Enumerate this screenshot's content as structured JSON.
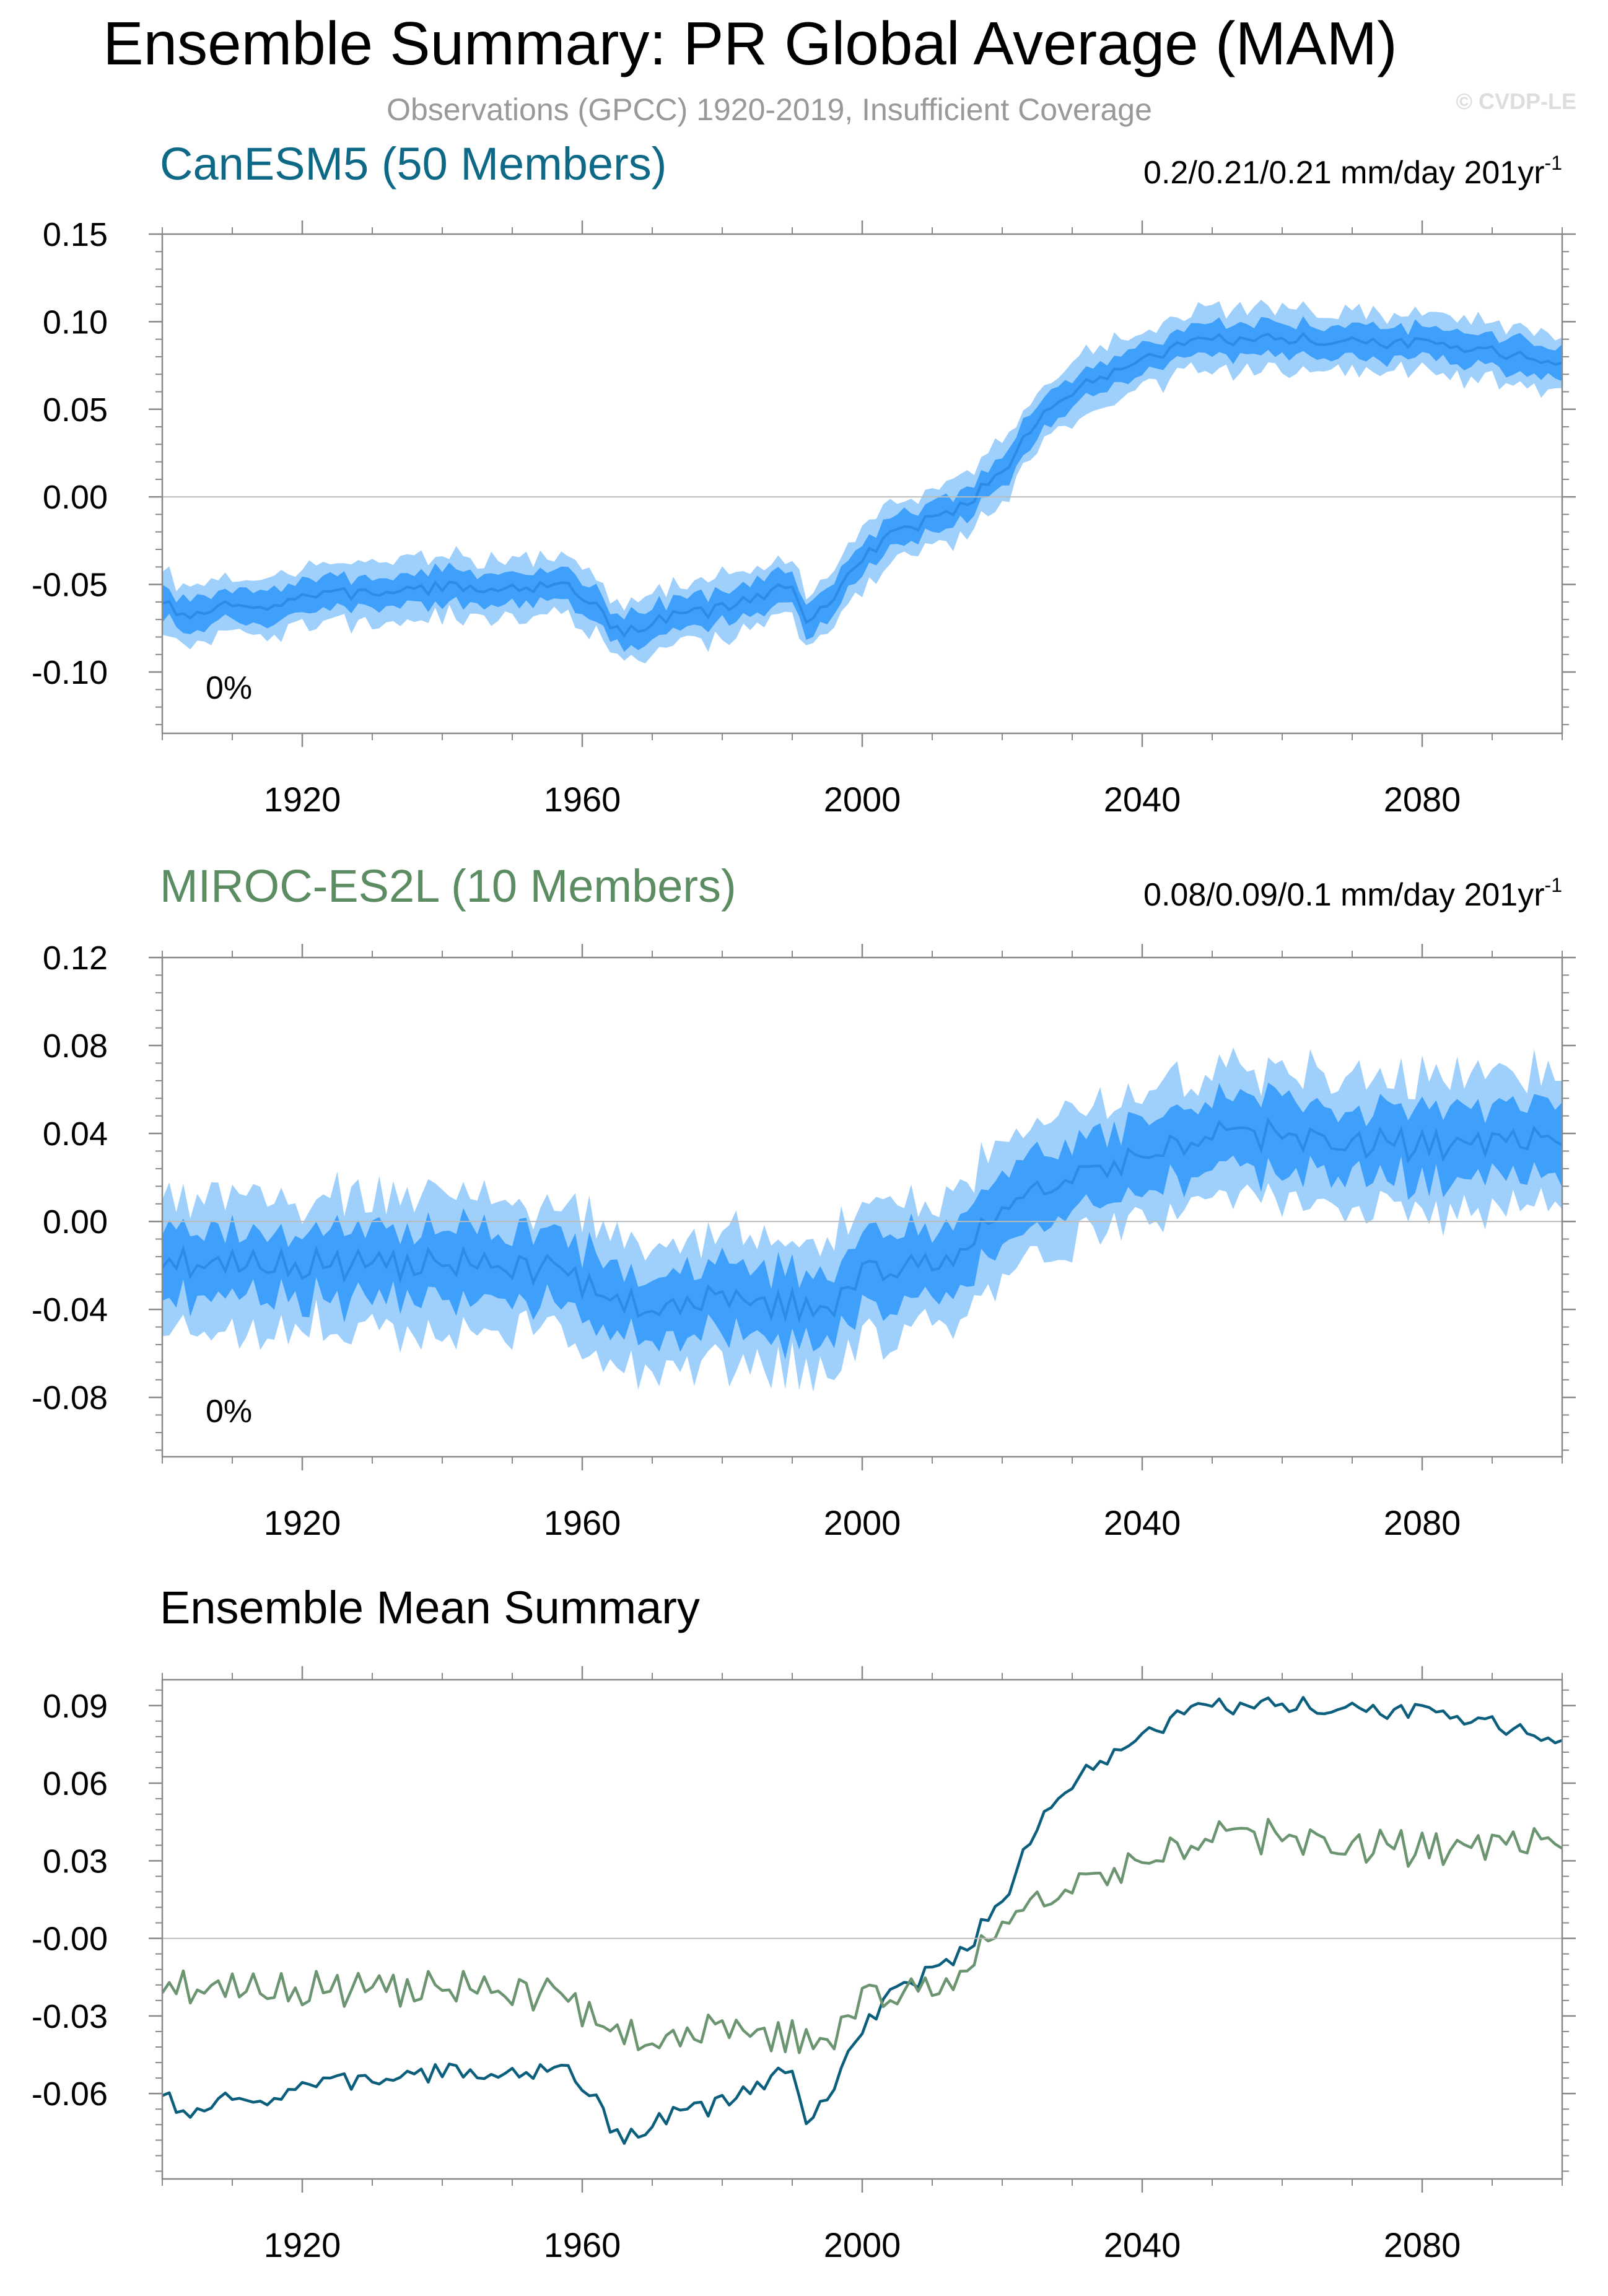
{
  "header": {
    "title": "Ensemble Summary: PR Global Average (MAM)",
    "subtitle": "Observations (GPCC) 1920-2019, Insufficient Coverage",
    "watermark": "© CVDP-LE"
  },
  "colors": {
    "canesm5_title": "#0e6987",
    "miroc_title": "#5b8c62",
    "band_outer": "#9fcffb",
    "band_inner": "#3ea0fb",
    "band_mean": "#2b8be8",
    "canesm5_mean_line": "#0b5e7c",
    "miroc_mean_line": "#6b9470",
    "zero_line": "#bbbbbb",
    "axis": "#888888"
  },
  "chart_data": [
    {
      "type": "area",
      "panel": "canesm5",
      "title": "CanESM5 (50 Members)",
      "trend_label": "0.2/0.21/0.21 mm/day 201yr",
      "trend_sup": "-1",
      "coverage_label": "0%",
      "xlim": [
        1900,
        2100
      ],
      "ylim": [
        -0.135,
        0.15
      ],
      "yticks": [
        -0.1,
        -0.05,
        0.0,
        0.05,
        0.1,
        0.15
      ],
      "ytick_labels": [
        "-0.10",
        "-0.05",
        "0.00",
        "0.05",
        "0.10",
        "0.15"
      ],
      "xticks": [
        1920,
        1960,
        2000,
        2040,
        2080
      ],
      "xtick_labels": [
        "1920",
        "1960",
        "2000",
        "2040",
        "2080"
      ],
      "series_kind": "smooth",
      "keys": [
        [
          1900,
          -0.059
        ],
        [
          1903,
          -0.07
        ],
        [
          1910,
          -0.062
        ],
        [
          1913,
          -0.064
        ],
        [
          1920,
          -0.057
        ],
        [
          1940,
          -0.052
        ],
        [
          1958,
          -0.051
        ],
        [
          1962,
          -0.06
        ],
        [
          1964,
          -0.078
        ],
        [
          1967,
          -0.075
        ],
        [
          1972,
          -0.069
        ],
        [
          1980,
          -0.064
        ],
        [
          1990,
          -0.05
        ],
        [
          1992,
          -0.075
        ],
        [
          1995,
          -0.06
        ],
        [
          2000,
          -0.035
        ],
        [
          2005,
          -0.02
        ],
        [
          2010,
          -0.013
        ],
        [
          2015,
          -0.003
        ],
        [
          2020,
          0.015
        ],
        [
          2025,
          0.042
        ],
        [
          2030,
          0.06
        ],
        [
          2035,
          0.07
        ],
        [
          2040,
          0.078
        ],
        [
          2045,
          0.085
        ],
        [
          2050,
          0.089
        ],
        [
          2060,
          0.09
        ],
        [
          2070,
          0.089
        ],
        [
          2080,
          0.087
        ],
        [
          2088,
          0.085
        ],
        [
          2093,
          0.08
        ],
        [
          2100,
          0.078
        ]
      ],
      "noise": 0.0035,
      "inner_halfwidth": 0.009,
      "outer_halfwidth": 0.017,
      "seed": 7
    },
    {
      "type": "area",
      "panel": "miroc",
      "title": "MIROC-ES2L (10 Members)",
      "trend_label": "0.08/0.09/0.1 mm/day 201yr",
      "trend_sup": "-1",
      "coverage_label": "0%",
      "xlim": [
        1900,
        2100
      ],
      "ylim": [
        -0.107,
        0.12
      ],
      "yticks": [
        -0.08,
        -0.04,
        0.0,
        0.04,
        0.08,
        0.12
      ],
      "ytick_labels": [
        "-0.08",
        "-0.04",
        "0.00",
        "0.04",
        "0.08",
        "0.12"
      ],
      "xticks": [
        1920,
        1960,
        2000,
        2040,
        2080
      ],
      "xtick_labels": [
        "1920",
        "1960",
        "2000",
        "2040",
        "2080"
      ],
      "series_kind": "noisy",
      "keys": [
        [
          1900,
          -0.018
        ],
        [
          1920,
          -0.02
        ],
        [
          1940,
          -0.019
        ],
        [
          1958,
          -0.022
        ],
        [
          1962,
          -0.035
        ],
        [
          1970,
          -0.038
        ],
        [
          1980,
          -0.036
        ],
        [
          1990,
          -0.038
        ],
        [
          1995,
          -0.042
        ],
        [
          2000,
          -0.022
        ],
        [
          2010,
          -0.02
        ],
        [
          2015,
          -0.01
        ],
        [
          2020,
          0.005
        ],
        [
          2025,
          0.015
        ],
        [
          2030,
          0.022
        ],
        [
          2040,
          0.03
        ],
        [
          2050,
          0.04
        ],
        [
          2060,
          0.038
        ],
        [
          2080,
          0.035
        ],
        [
          2100,
          0.037
        ]
      ],
      "noise": 0.011,
      "inner_halfwidth": 0.016,
      "outer_halfwidth": 0.03,
      "seed": 23
    },
    {
      "type": "line",
      "panel": "summary",
      "title": "Ensemble Mean Summary",
      "xlim": [
        1900,
        2100
      ],
      "ylim": [
        -0.093,
        0.1
      ],
      "yticks": [
        -0.06,
        -0.03,
        0.0,
        0.03,
        0.06,
        0.09
      ],
      "ytick_labels": [
        "-0.06",
        "-0.03",
        "-0.00",
        "0.03",
        "0.06",
        "0.09"
      ],
      "xticks": [
        1920,
        1960,
        2000,
        2040,
        2080
      ],
      "xtick_labels": [
        "1920",
        "1960",
        "2000",
        "2040",
        "2080"
      ],
      "series": [
        {
          "name": "CanESM5",
          "color_key": "canesm5_mean_line",
          "source": "canesm5"
        },
        {
          "name": "MIROC-ES2L",
          "color_key": "miroc_mean_line",
          "source": "miroc"
        }
      ]
    }
  ]
}
